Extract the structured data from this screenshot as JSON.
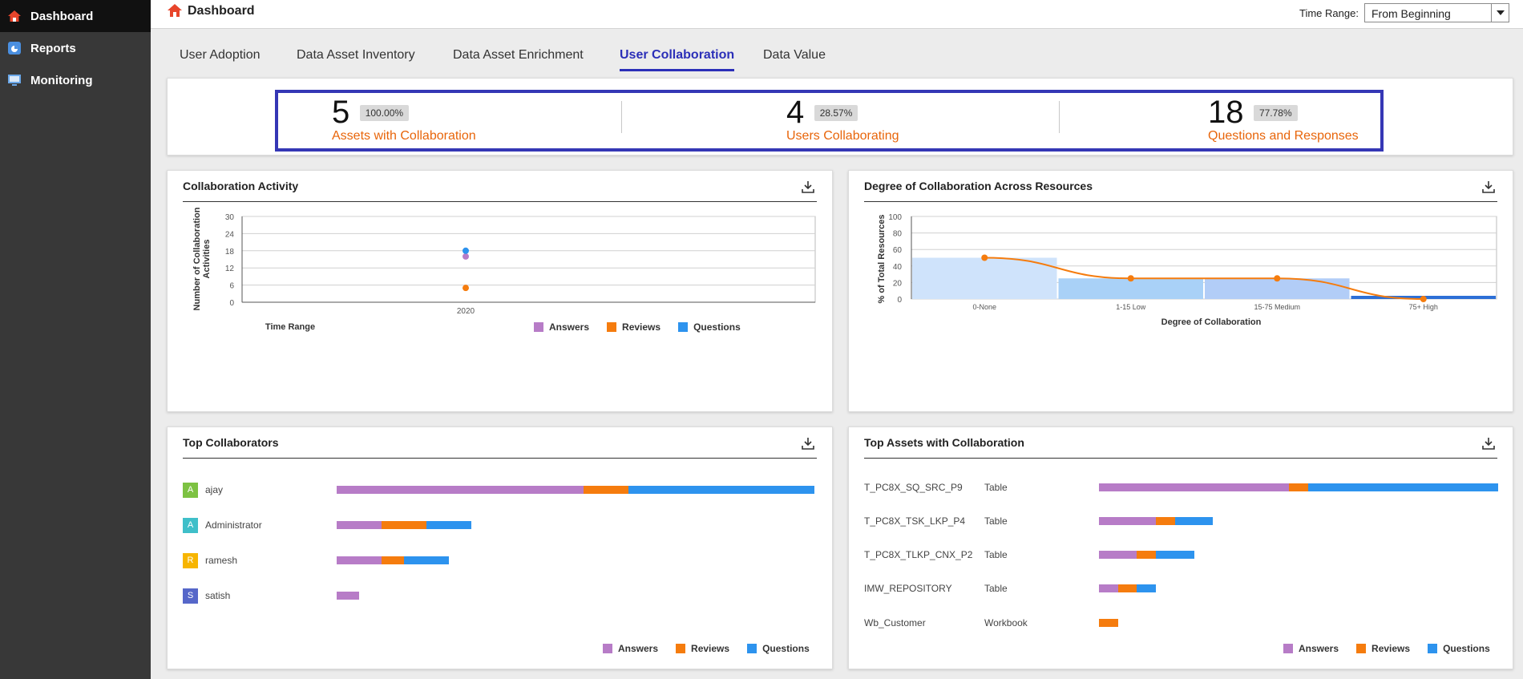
{
  "colors": {
    "answers": "#b77cc7",
    "reviews": "#f57c0e",
    "questions": "#2d93ee",
    "accent": "#2b2fb8",
    "kpi_label": "#e8650a"
  },
  "sidebar": {
    "items": [
      {
        "label": "Dashboard",
        "icon": "home-icon",
        "active": true
      },
      {
        "label": "Reports",
        "icon": "reports-icon",
        "active": false
      },
      {
        "label": "Monitoring",
        "icon": "monitor-icon",
        "active": false
      }
    ]
  },
  "header": {
    "title": "Dashboard",
    "time_range_label": "Time Range:",
    "time_range_value": "From Beginning"
  },
  "tabs": [
    {
      "label": "User Adoption",
      "active": false
    },
    {
      "label": "Data Asset Inventory",
      "active": false
    },
    {
      "label": "Data Asset Enrichment",
      "active": false
    },
    {
      "label": "User Collaboration",
      "active": true
    },
    {
      "label": "Data Value",
      "active": false
    }
  ],
  "summary": {
    "kpis": [
      {
        "value": "5",
        "badge": "100.00%",
        "label": "Assets with Collaboration"
      },
      {
        "value": "4",
        "badge": "28.57%",
        "label": "Users Collaborating"
      },
      {
        "value": "18",
        "badge": "77.78%",
        "label": "Questions and Responses"
      }
    ]
  },
  "legend": {
    "answers": "Answers",
    "reviews": "Reviews",
    "questions": "Questions"
  },
  "collab_activity": {
    "title": "Collaboration Activity",
    "chart_data": {
      "type": "scatter",
      "title": "Collaboration Activity",
      "xlabel": "Time Range",
      "ylabel": "Number of Collaboration Activities",
      "ylim": [
        0,
        30
      ],
      "yticks": [
        "0",
        "6",
        "12",
        "18",
        "24",
        "30"
      ],
      "categories": [
        "2020"
      ],
      "series": [
        {
          "name": "Answers",
          "values": [
            16
          ]
        },
        {
          "name": "Reviews",
          "values": [
            5
          ]
        },
        {
          "name": "Questions",
          "values": [
            18
          ]
        }
      ],
      "grid": true,
      "legend": "bottom-right"
    }
  },
  "degree_collab": {
    "title": "Degree of Collaboration Across Resources",
    "chart_data": {
      "type": "bar",
      "title": "Degree of Collaboration Across Resources",
      "xlabel": "Degree of Collaboration",
      "ylabel": "% of Total Resources",
      "ylim": [
        0,
        100
      ],
      "yticks": [
        "0",
        "20",
        "40",
        "60",
        "80",
        "100"
      ],
      "categories": [
        "0-None",
        "1-15 Low",
        "15-75 Medium",
        "75+ High"
      ],
      "values": [
        50,
        25,
        25,
        0
      ],
      "line_values": [
        50,
        25,
        25,
        0
      ],
      "grid": true
    }
  },
  "top_collaborators": {
    "title": "Top Collaborators",
    "chart_data": {
      "type": "bar",
      "orientation": "horizontal-stacked",
      "categories": [
        "ajay",
        "Administrator",
        "ramesh",
        "satish"
      ],
      "avatars": [
        "A",
        "A",
        "R",
        "S"
      ],
      "avatar_colors": [
        "#7dc242",
        "#3fbfc9",
        "#f7b500",
        "#5667c9"
      ],
      "series": [
        {
          "name": "Answers",
          "values": [
            11,
            2,
            2,
            1
          ]
        },
        {
          "name": "Reviews",
          "values": [
            2,
            2,
            1,
            0
          ]
        },
        {
          "name": "Questions",
          "values": [
            8.3,
            2,
            2,
            0
          ]
        }
      ],
      "xlim": [
        0,
        21.3
      ],
      "legend": "bottom-right"
    }
  },
  "top_assets": {
    "title": "Top Assets with Collaboration",
    "chart_data": {
      "type": "bar",
      "orientation": "horizontal-stacked",
      "categories": [
        "T_PC8X_SQ_SRC_P9",
        "T_PC8X_TSK_LKP_P4",
        "T_PC8X_TLKP_CNX_P2",
        "IMW_REPOSITORY",
        "Wb_Customer"
      ],
      "asset_types": [
        "Table",
        "Table",
        "Table",
        "Table",
        "Workbook"
      ],
      "series": [
        {
          "name": "Answers",
          "values": [
            10,
            3,
            2,
            1,
            0
          ]
        },
        {
          "name": "Reviews",
          "values": [
            1,
            1,
            1,
            1,
            1
          ]
        },
        {
          "name": "Questions",
          "values": [
            10,
            2,
            2,
            1,
            0
          ]
        }
      ],
      "xlim": [
        0,
        21
      ],
      "legend": "bottom-right"
    }
  }
}
